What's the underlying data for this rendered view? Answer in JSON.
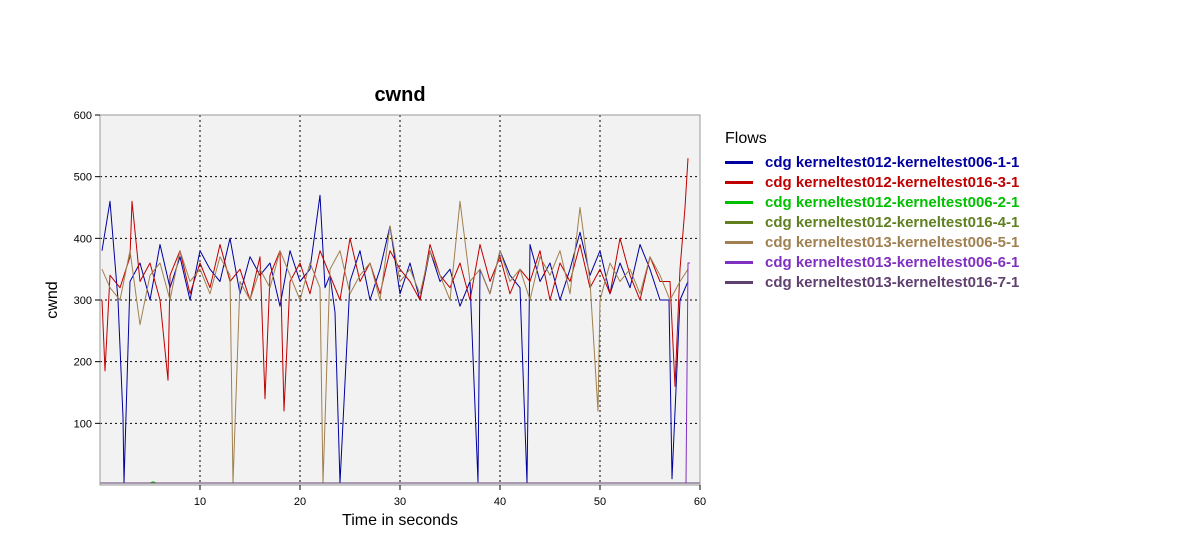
{
  "chart_data": {
    "type": "line",
    "title": "cwnd",
    "xlabel": "Time in seconds",
    "ylabel": "cwnd",
    "xlim": [
      0,
      60
    ],
    "ylim": [
      0,
      600
    ],
    "xticks": [
      "10",
      "20",
      "30",
      "40",
      "50",
      "60"
    ],
    "yticks": [
      "100",
      "200",
      "300",
      "400",
      "500",
      "600"
    ],
    "grid": true,
    "legend": {
      "title": "Flows",
      "placement": "right"
    },
    "series": [
      {
        "name": "cdg kerneltest012-kerneltest006-1-1",
        "color": "#0000a0",
        "x": [
          0.2,
          1.0,
          1.8,
          2.3,
          2.4,
          3.0,
          4.0,
          5.0,
          6.0,
          7.0,
          8.0,
          9.0,
          10.0,
          11.0,
          12.0,
          13.0,
          14.0,
          15.0,
          16.0,
          17.0,
          18.0,
          19.0,
          20.0,
          21.0,
          22.0,
          22.5,
          23.0,
          23.5,
          24.0,
          25.0,
          26.0,
          27.0,
          28.0,
          29.0,
          30.0,
          31.0,
          32.0,
          33.0,
          34.0,
          35.0,
          36.0,
          37.0,
          37.8,
          38.0,
          39.0,
          40.0,
          41.0,
          42.0,
          42.7,
          43.0,
          44.0,
          45.0,
          46.0,
          47.0,
          48.0,
          49.0,
          50.0,
          51.0,
          52.0,
          53.0,
          54.0,
          55.0,
          56.0,
          56.9,
          57.2,
          58.0,
          58.8
        ],
        "y": [
          380,
          460,
          300,
          110,
          0,
          330,
          360,
          300,
          390,
          320,
          370,
          300,
          380,
          350,
          330,
          400,
          310,
          370,
          340,
          360,
          290,
          380,
          330,
          350,
          470,
          320,
          340,
          280,
          0,
          330,
          380,
          300,
          350,
          420,
          310,
          360,
          300,
          380,
          330,
          350,
          290,
          330,
          5,
          350,
          310,
          380,
          340,
          320,
          0,
          390,
          330,
          360,
          300,
          350,
          410,
          340,
          380,
          310,
          360,
          320,
          390,
          350,
          300,
          300,
          10,
          300,
          330
        ]
      },
      {
        "name": "cdg kerneltest012-kerneltest016-3-1",
        "color": "#c00000",
        "x": [
          0.2,
          0.5,
          1.0,
          2.0,
          3.0,
          3.2,
          4.0,
          5.0,
          6.0,
          6.8,
          7.0,
          8.0,
          9.0,
          10.0,
          11.0,
          12.0,
          13.0,
          14.0,
          15.0,
          16.0,
          16.5,
          17.0,
          18.0,
          18.4,
          19.0,
          20.0,
          21.0,
          22.0,
          23.0,
          24.0,
          25.0,
          26.0,
          27.0,
          28.0,
          29.0,
          30.0,
          31.0,
          32.0,
          33.0,
          34.0,
          35.0,
          36.0,
          37.0,
          38.0,
          39.0,
          40.0,
          41.0,
          42.0,
          43.0,
          44.0,
          45.0,
          46.0,
          47.0,
          48.0,
          49.0,
          50.0,
          51.0,
          52.0,
          53.0,
          54.0,
          55.0,
          56.0,
          57.0,
          57.5,
          58.0,
          58.5,
          58.8
        ],
        "y": [
          300,
          185,
          340,
          320,
          370,
          460,
          330,
          360,
          300,
          170,
          340,
          380,
          310,
          360,
          320,
          390,
          330,
          350,
          300,
          370,
          140,
          340,
          380,
          120,
          330,
          360,
          310,
          380,
          340,
          300,
          400,
          330,
          360,
          310,
          380,
          350,
          330,
          300,
          390,
          340,
          320,
          360,
          300,
          390,
          330,
          370,
          310,
          350,
          330,
          380,
          300,
          360,
          330,
          390,
          320,
          350,
          310,
          400,
          340,
          300,
          370,
          330,
          330,
          160,
          350,
          450,
          530
        ]
      },
      {
        "name": "cdg kerneltest012-kerneltest006-2-1",
        "color": "#00c000",
        "x": [
          0,
          5.0,
          5.3,
          5.6,
          60
        ],
        "y": [
          0,
          0,
          5,
          0,
          0
        ]
      },
      {
        "name": "cdg kerneltest012-kerneltest016-4-1",
        "color": "#608020",
        "x": [
          0,
          60
        ],
        "y": [
          0,
          0
        ]
      },
      {
        "name": "cdg kerneltest013-kerneltest006-5-1",
        "color": "#a08050",
        "x": [
          0.2,
          1.0,
          2.0,
          3.0,
          4.0,
          5.0,
          6.0,
          7.0,
          8.0,
          9.0,
          10.0,
          11.0,
          12.0,
          13.0,
          13.3,
          14.0,
          15.0,
          16.0,
          17.0,
          18.0,
          19.0,
          20.0,
          21.0,
          22.0,
          22.3,
          23.0,
          24.0,
          25.0,
          26.0,
          27.0,
          28.0,
          29.0,
          30.0,
          31.0,
          32.0,
          33.0,
          34.0,
          35.0,
          36.0,
          37.0,
          38.0,
          39.0,
          40.0,
          41.0,
          42.0,
          43.0,
          44.0,
          45.0,
          46.0,
          47.0,
          48.0,
          49.0,
          49.8,
          50.0,
          51.0,
          52.0,
          53.0,
          54.0,
          55.0,
          56.0,
          57.0,
          58.0,
          58.8
        ],
        "y": [
          350,
          320,
          300,
          380,
          260,
          340,
          360,
          300,
          380,
          330,
          350,
          310,
          370,
          340,
          0,
          330,
          300,
          350,
          320,
          380,
          340,
          300,
          360,
          320,
          0,
          350,
          380,
          310,
          340,
          360,
          300,
          420,
          330,
          350,
          310,
          380,
          340,
          300,
          460,
          330,
          350,
          310,
          380,
          330,
          350,
          300,
          370,
          340,
          380,
          310,
          450,
          330,
          120,
          300,
          360,
          330,
          350,
          310,
          370,
          340,
          300,
          330,
          350
        ]
      },
      {
        "name": "cdg kerneltest013-kerneltest006-6-1",
        "color": "#8030c0",
        "x": [
          0,
          58.6,
          58.8,
          59.0
        ],
        "y": [
          2,
          2,
          360,
          360
        ]
      },
      {
        "name": "cdg kerneltest013-kerneltest016-7-1",
        "color": "#604070",
        "x": [
          0,
          60
        ],
        "y": [
          0,
          0
        ]
      }
    ]
  }
}
